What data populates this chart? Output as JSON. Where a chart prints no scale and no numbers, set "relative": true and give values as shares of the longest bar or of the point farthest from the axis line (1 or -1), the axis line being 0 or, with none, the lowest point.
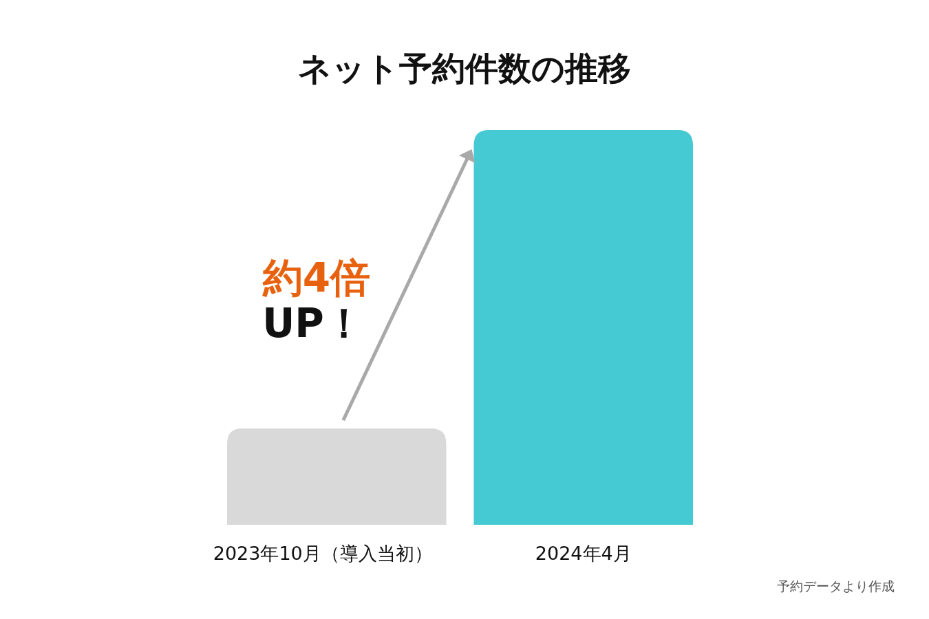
{
  "chart_data": {
    "type": "bar",
    "title": "ネット予約件数の推移",
    "categories": [
      "2023年10月（導入当初）",
      "2024年4月"
    ],
    "values": [
      0.244,
      1
    ],
    "colors": [
      "#d9d9d9",
      "#45c9d2"
    ],
    "relative": true,
    "annotations": [
      "約4倍",
      "UP！",
      "予約データより作成"
    ]
  }
}
